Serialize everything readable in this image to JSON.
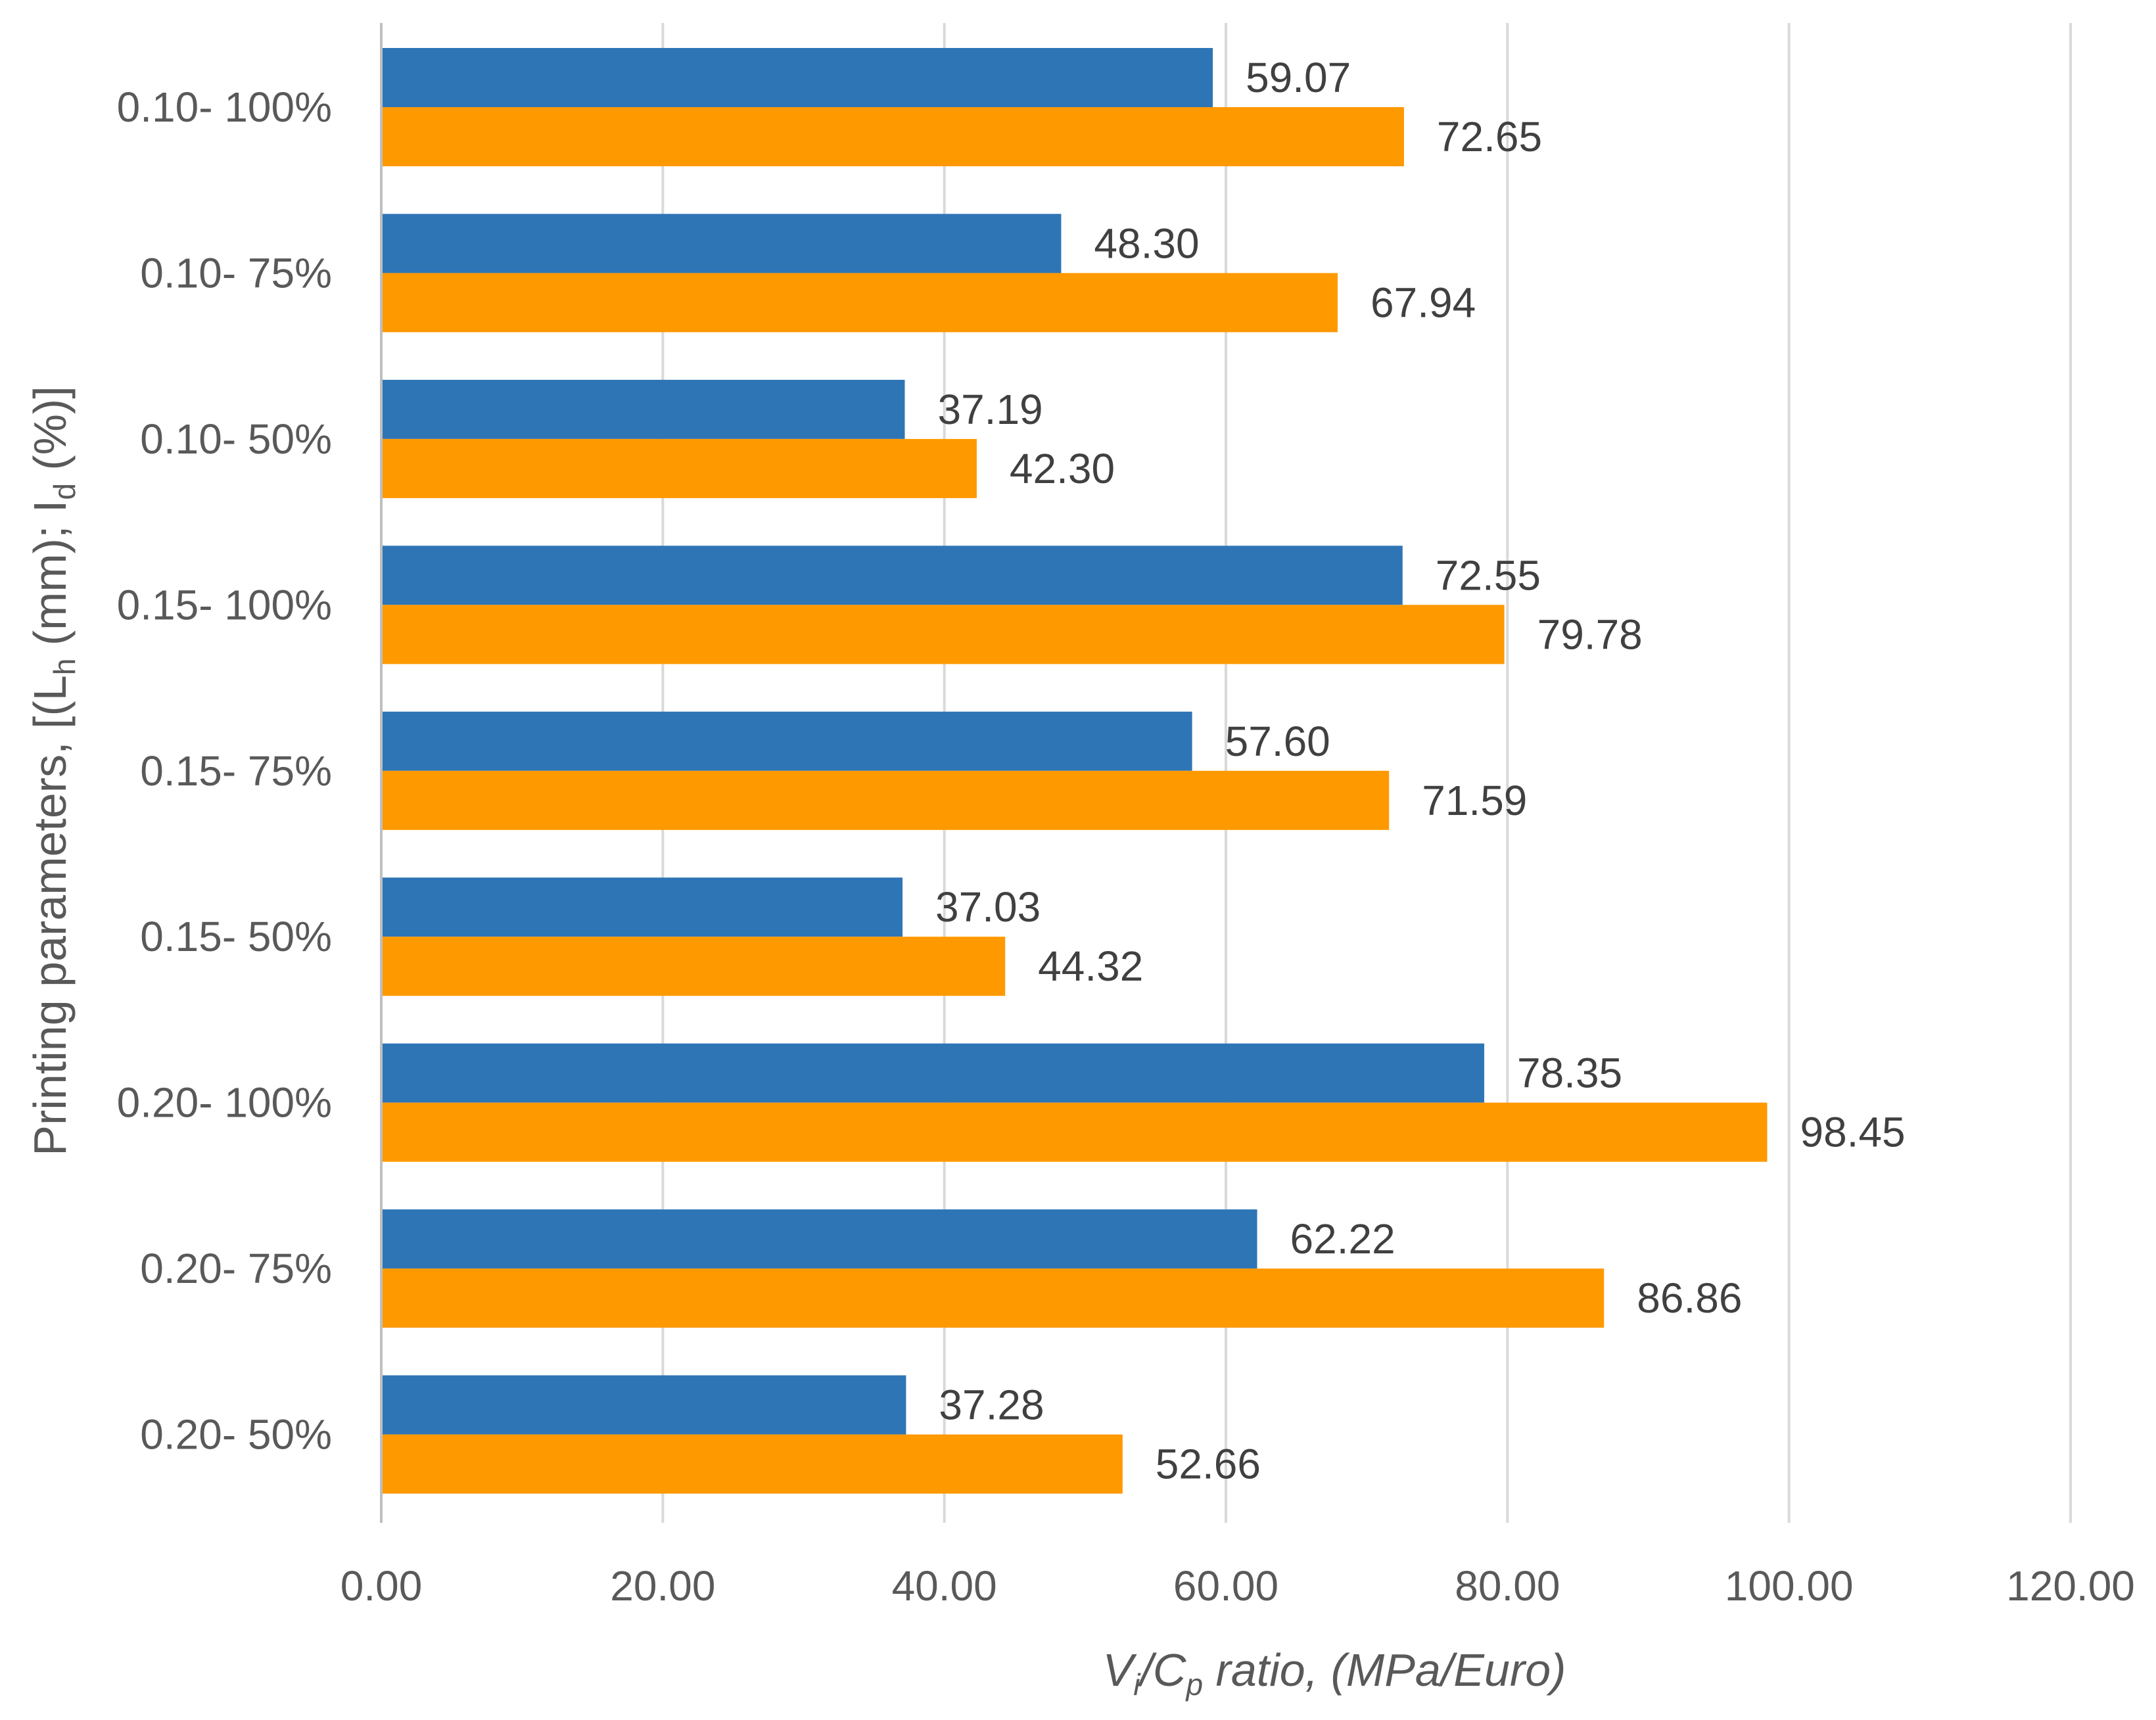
{
  "chart_data": {
    "type": "bar",
    "orientation": "horizontal",
    "categories": [
      "0.10- 100%",
      "0.10- 75%",
      "0.10- 50%",
      "0.15- 100%",
      "0.15- 75%",
      "0.15- 50%",
      "0.20- 100%",
      "0.20- 75%",
      "0.20- 50%"
    ],
    "series": [
      {
        "name": "",
        "color": "#2E75B6",
        "values": [
          59.07,
          48.3,
          37.19,
          72.55,
          57.6,
          37.03,
          78.35,
          62.22,
          37.28
        ],
        "labels": [
          "59.07",
          "48.30",
          "37.19",
          "72.55",
          "57.60",
          "37.03",
          "78.35",
          "62.22",
          "37.28"
        ]
      },
      {
        "name": "",
        "color": "#FF9900",
        "values": [
          72.65,
          67.94,
          42.3,
          79.78,
          71.59,
          44.32,
          98.45,
          86.86,
          52.66
        ],
        "labels": [
          "72.65",
          "67.94",
          "42.30",
          "79.78",
          "71.59",
          "44.32",
          "98.45",
          "86.86",
          "52.66"
        ]
      }
    ],
    "xlim": [
      0,
      120
    ],
    "xticks": [
      "0.00",
      "20.00",
      "40.00",
      "60.00",
      "80.00",
      "100.00",
      "120.00"
    ],
    "xlabel": {
      "v": "V",
      "v_sub": "i",
      "slash": "/",
      "c": "C",
      "c_sub": "p",
      "rest": " ratio, (MPa/Euro)"
    },
    "ylabel": {
      "prefix": "Printing parameters, [(L",
      "sub1": "h",
      "mid": " (mm); I",
      "sub2": "d",
      "suffix": " (%)]"
    },
    "title": "",
    "grid": true,
    "colors": {
      "grid": "#D9D9D9",
      "axis": "#BFBFBF"
    }
  }
}
